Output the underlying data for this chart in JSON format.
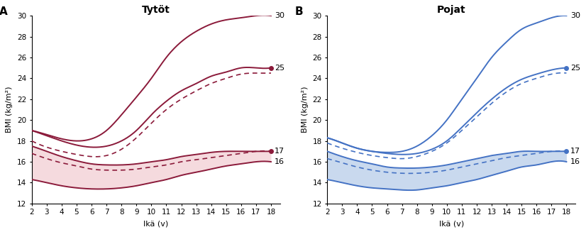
{
  "ages": [
    2,
    3,
    4,
    5,
    6,
    7,
    8,
    9,
    10,
    11,
    12,
    13,
    14,
    15,
    16,
    17,
    18
  ],
  "girls": {
    "bmi30": [
      19.0,
      18.6,
      18.2,
      18.0,
      18.2,
      19.0,
      20.5,
      22.2,
      24.0,
      26.0,
      27.5,
      28.5,
      29.2,
      29.6,
      29.8,
      30.0,
      30.0
    ],
    "bmi25": [
      19.0,
      18.5,
      18.0,
      17.6,
      17.4,
      17.5,
      18.0,
      19.0,
      20.5,
      21.8,
      22.8,
      23.5,
      24.2,
      24.6,
      25.0,
      25.0,
      25.0
    ],
    "bmi25d": [
      18.0,
      17.4,
      17.0,
      16.7,
      16.5,
      16.6,
      17.2,
      18.3,
      19.7,
      21.0,
      22.0,
      22.8,
      23.5,
      24.0,
      24.4,
      24.5,
      24.5
    ],
    "bmi17": [
      17.5,
      17.0,
      16.5,
      16.1,
      15.8,
      15.7,
      15.7,
      15.8,
      16.0,
      16.2,
      16.5,
      16.7,
      16.9,
      17.0,
      17.0,
      17.0,
      17.0
    ],
    "bmi17d": [
      16.8,
      16.3,
      15.9,
      15.6,
      15.3,
      15.2,
      15.2,
      15.3,
      15.5,
      15.7,
      16.0,
      16.2,
      16.4,
      16.6,
      16.8,
      17.0,
      17.0
    ],
    "bmi16": [
      14.3,
      14.0,
      13.7,
      13.5,
      13.4,
      13.4,
      13.5,
      13.7,
      14.0,
      14.3,
      14.7,
      15.0,
      15.3,
      15.6,
      15.8,
      16.0,
      16.0
    ],
    "shade_upper": [
      17.5,
      17.0,
      16.5,
      16.1,
      15.8,
      15.7,
      15.7,
      15.8,
      16.0,
      16.2,
      16.5,
      16.7,
      16.9,
      17.0,
      17.0,
      17.0,
      17.0
    ],
    "shade_lower": [
      14.3,
      14.0,
      13.7,
      13.5,
      13.4,
      13.4,
      13.5,
      13.7,
      14.0,
      14.3,
      14.7,
      15.0,
      15.3,
      15.6,
      15.8,
      16.0,
      16.0
    ]
  },
  "boys": {
    "bmi30": [
      18.3,
      17.8,
      17.3,
      17.0,
      16.9,
      17.0,
      17.5,
      18.5,
      20.0,
      22.0,
      24.0,
      26.0,
      27.5,
      28.7,
      29.3,
      29.8,
      30.0
    ],
    "bmi25": [
      18.3,
      17.8,
      17.3,
      17.0,
      16.8,
      16.7,
      16.8,
      17.2,
      18.0,
      19.3,
      20.7,
      22.0,
      23.1,
      23.9,
      24.4,
      24.8,
      25.0
    ],
    "bmi25d": [
      17.8,
      17.3,
      16.9,
      16.6,
      16.4,
      16.3,
      16.5,
      17.0,
      17.8,
      19.0,
      20.3,
      21.6,
      22.7,
      23.5,
      24.0,
      24.4,
      24.5
    ],
    "bmi17": [
      17.0,
      16.5,
      16.1,
      15.8,
      15.5,
      15.4,
      15.4,
      15.5,
      15.7,
      16.0,
      16.3,
      16.6,
      16.8,
      17.0,
      17.0,
      17.0,
      17.0
    ],
    "bmi17d": [
      16.3,
      15.9,
      15.5,
      15.2,
      15.0,
      14.9,
      14.9,
      15.0,
      15.2,
      15.5,
      15.8,
      16.1,
      16.4,
      16.6,
      16.8,
      17.0,
      17.0
    ],
    "bmi16": [
      14.3,
      14.0,
      13.7,
      13.5,
      13.4,
      13.3,
      13.3,
      13.5,
      13.7,
      14.0,
      14.3,
      14.7,
      15.1,
      15.5,
      15.7,
      16.0,
      16.0
    ],
    "shade_upper": [
      17.0,
      16.5,
      16.1,
      15.8,
      15.5,
      15.4,
      15.4,
      15.5,
      15.7,
      16.0,
      16.3,
      16.6,
      16.8,
      17.0,
      17.0,
      17.0,
      17.0
    ],
    "shade_lower": [
      14.3,
      14.0,
      13.7,
      13.5,
      13.4,
      13.3,
      13.3,
      13.5,
      13.7,
      14.0,
      14.3,
      14.7,
      15.1,
      15.5,
      15.7,
      16.0,
      16.0
    ]
  },
  "girl_color": "#8B1A3A",
  "boy_color": "#4472C4",
  "girl_shade_color": "#F5DADE",
  "boy_shade_color": "#C9D9EE",
  "ylim": [
    12,
    30
  ],
  "yticks": [
    12,
    14,
    16,
    18,
    20,
    22,
    24,
    26,
    28,
    30
  ],
  "xticks": [
    2,
    3,
    4,
    5,
    6,
    7,
    8,
    9,
    10,
    11,
    12,
    13,
    14,
    15,
    16,
    17,
    18
  ],
  "ylabel": "BMI (kg/m²)",
  "xlabel": "Ikä (v)",
  "title_girls": "Tytöt",
  "title_boys": "Pojat",
  "label_A": "A",
  "label_B": "B",
  "girls_dot_labels": {
    "25": 25.0,
    "17": 17.0
  },
  "boys_dot_labels": {
    "25": 25.0,
    "17": 17.0
  }
}
